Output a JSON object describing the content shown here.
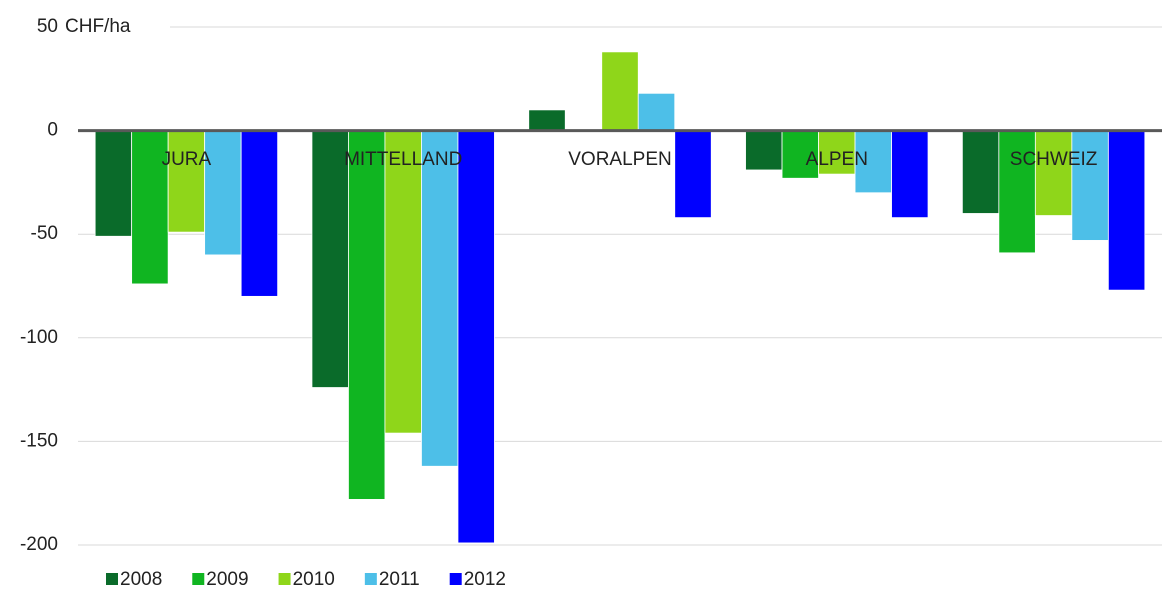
{
  "chart_data": {
    "type": "bar",
    "ylabel": "CHF/ha",
    "categories": [
      "JURA",
      "MITTELLAND",
      "VORALPEN",
      "ALPEN",
      "SCHWEIZ"
    ],
    "series": [
      {
        "name": "2008",
        "color": "#0a6b2a",
        "values": [
          -51,
          -124,
          10,
          -19,
          -40
        ]
      },
      {
        "name": "2009",
        "color": "#10b521",
        "values": [
          -74,
          -178,
          0,
          -23,
          -59
        ]
      },
      {
        "name": "2010",
        "color": "#8fd61a",
        "values": [
          -49,
          -146,
          38,
          -21,
          -41
        ]
      },
      {
        "name": "2011",
        "color": "#4dbfe8",
        "values": [
          -60,
          -162,
          18,
          -30,
          -53
        ]
      },
      {
        "name": "2012",
        "color": "#0000ff",
        "values": [
          -80,
          -199,
          -42,
          -42,
          -77
        ]
      }
    ],
    "ylim": [
      -200,
      50
    ],
    "yticks": [
      -200,
      -150,
      -100,
      -50,
      0,
      50
    ],
    "grid": true,
    "legend": "bottom"
  }
}
